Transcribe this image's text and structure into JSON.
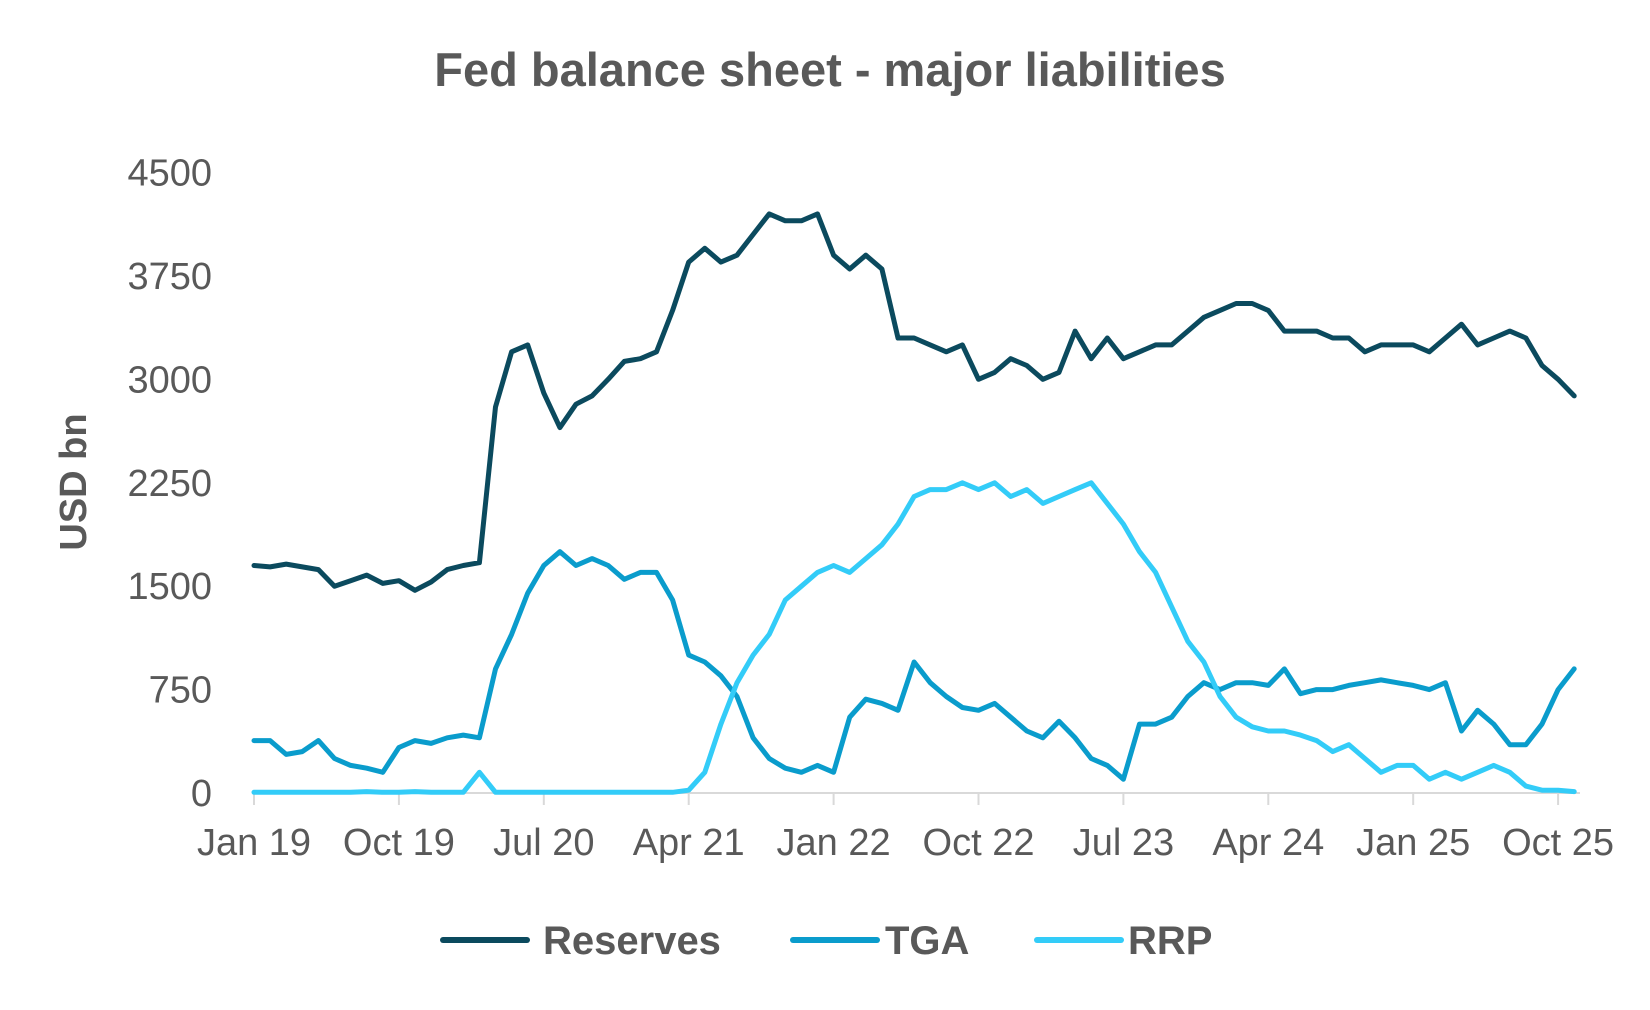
{
  "chart_data": {
    "type": "line",
    "title": "Fed balance sheet - major liabilities",
    "xlabel": "",
    "ylabel": "USD bn",
    "ylim": [
      0,
      4500
    ],
    "yticks": [
      0,
      750,
      1500,
      2250,
      3000,
      3750,
      4500
    ],
    "xtick_labels": [
      "Jan 19",
      "Oct 19",
      "Jul 20",
      "Apr 21",
      "Jan 22",
      "Oct 22",
      "Jul 23",
      "Apr 24",
      "Jan 25",
      "Oct 25"
    ],
    "xtick_months": [
      "2019-01",
      "2019-10",
      "2020-07",
      "2021-04",
      "2022-01",
      "2022-10",
      "2023-07",
      "2024-04",
      "2025-01",
      "2025-10"
    ],
    "x_start": "2019-01",
    "x_frequency": "monthly",
    "grid": false,
    "legend": "bottom",
    "series": [
      {
        "name": "Reserves",
        "color": "#0b4a5e",
        "values": [
          1650,
          1640,
          1660,
          1640,
          1620,
          1500,
          1540,
          1580,
          1520,
          1540,
          1470,
          1530,
          1620,
          1650,
          1670,
          2800,
          3200,
          3250,
          2900,
          2650,
          2820,
          2880,
          3000,
          3130,
          3150,
          3200,
          3500,
          3850,
          3950,
          3850,
          3900,
          4050,
          4200,
          4150,
          4150,
          4200,
          3900,
          3800,
          3900,
          3800,
          3300,
          3300,
          3250,
          3200,
          3250,
          3000,
          3050,
          3150,
          3100,
          3000,
          3050,
          3350,
          3150,
          3300,
          3150,
          3200,
          3250,
          3250,
          3350,
          3450,
          3500,
          3550,
          3550,
          3500,
          3350,
          3350,
          3350,
          3300,
          3300,
          3200,
          3250,
          3250,
          3250,
          3200,
          3300,
          3400,
          3250,
          3300,
          3350,
          3300,
          3100,
          3000,
          2880
        ]
      },
      {
        "name": "TGA",
        "color": "#0a9ccc",
        "values": [
          380,
          380,
          280,
          300,
          380,
          250,
          200,
          180,
          150,
          330,
          380,
          360,
          400,
          420,
          400,
          900,
          1150,
          1450,
          1650,
          1750,
          1650,
          1700,
          1650,
          1550,
          1600,
          1600,
          1400,
          1000,
          950,
          850,
          700,
          400,
          250,
          180,
          150,
          200,
          150,
          550,
          680,
          650,
          600,
          950,
          800,
          700,
          620,
          600,
          650,
          550,
          450,
          400,
          520,
          400,
          250,
          200,
          100,
          500,
          500,
          550,
          700,
          800,
          750,
          800,
          800,
          780,
          900,
          720,
          750,
          750,
          780,
          800,
          820,
          800,
          780,
          750,
          800,
          450,
          600,
          500,
          350,
          350,
          500,
          750,
          900
        ]
      },
      {
        "name": "RRP",
        "color": "#33ccf8",
        "values": [
          5,
          5,
          5,
          5,
          5,
          5,
          5,
          10,
          5,
          5,
          10,
          5,
          5,
          5,
          150,
          5,
          5,
          5,
          5,
          5,
          5,
          5,
          5,
          5,
          5,
          5,
          5,
          20,
          150,
          500,
          800,
          1000,
          1150,
          1400,
          1500,
          1600,
          1650,
          1600,
          1700,
          1800,
          1950,
          2150,
          2200,
          2200,
          2250,
          2200,
          2250,
          2150,
          2200,
          2100,
          2150,
          2200,
          2250,
          2100,
          1950,
          1750,
          1600,
          1350,
          1100,
          950,
          700,
          550,
          480,
          450,
          450,
          420,
          380,
          300,
          350,
          250,
          150,
          200,
          200,
          100,
          150,
          100,
          150,
          200,
          150,
          50,
          20,
          20,
          10
        ]
      }
    ]
  }
}
